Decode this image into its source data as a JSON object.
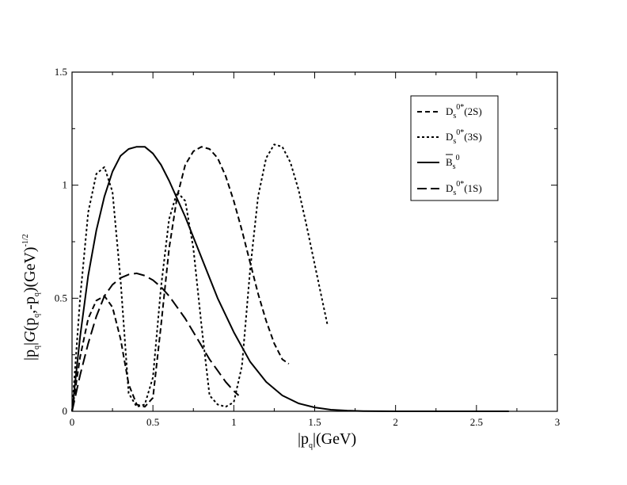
{
  "chart_data": {
    "type": "line",
    "xlabel": "|p_q|(GeV)",
    "ylabel": "|p_q|G(p_q,-p_q)(GeV)^-1/2",
    "xlim": [
      0,
      3
    ],
    "ylim": [
      0,
      1.5
    ],
    "xticks": [
      0,
      0.5,
      1,
      1.5,
      2,
      2.5,
      3
    ],
    "xtick_labels": [
      "0",
      "0.5",
      "1",
      "1.5",
      "2",
      "2.5",
      "3"
    ],
    "yticks": [
      0,
      0.5,
      1,
      1.5
    ],
    "ytick_labels": [
      "0",
      "0.5",
      "1",
      "1.5"
    ],
    "grid": false,
    "legend_position": "top-right",
    "series": [
      {
        "name": "D_s^0*(2S)",
        "style": "dash",
        "color": "#000000",
        "x": [
          0,
          0.05,
          0.1,
          0.15,
          0.2,
          0.25,
          0.3,
          0.35,
          0.4,
          0.45,
          0.5,
          0.55,
          0.6,
          0.65,
          0.7,
          0.75,
          0.8,
          0.85,
          0.9,
          0.95,
          1.0,
          1.05,
          1.1,
          1.15,
          1.2,
          1.25,
          1.3,
          1.34
        ],
        "y": [
          0,
          0.24,
          0.41,
          0.49,
          0.51,
          0.46,
          0.32,
          0.12,
          0.03,
          0.02,
          0.06,
          0.38,
          0.72,
          0.95,
          1.09,
          1.15,
          1.17,
          1.16,
          1.12,
          1.04,
          0.93,
          0.8,
          0.66,
          0.52,
          0.4,
          0.3,
          0.23,
          0.21
        ]
      },
      {
        "name": "D_s^0*(3S)",
        "style": "dot",
        "color": "#000000",
        "x": [
          0,
          0.05,
          0.1,
          0.15,
          0.2,
          0.25,
          0.3,
          0.35,
          0.4,
          0.45,
          0.5,
          0.55,
          0.6,
          0.65,
          0.7,
          0.75,
          0.8,
          0.85,
          0.9,
          0.95,
          1.0,
          1.05,
          1.1,
          1.15,
          1.2,
          1.25,
          1.3,
          1.35,
          1.4,
          1.45,
          1.5,
          1.55,
          1.58
        ],
        "y": [
          0,
          0.5,
          0.88,
          1.05,
          1.08,
          0.97,
          0.58,
          0.08,
          0.02,
          0.03,
          0.15,
          0.55,
          0.85,
          0.97,
          0.93,
          0.72,
          0.38,
          0.07,
          0.03,
          0.02,
          0.04,
          0.2,
          0.62,
          0.95,
          1.12,
          1.18,
          1.17,
          1.1,
          0.98,
          0.82,
          0.65,
          0.48,
          0.38
        ]
      },
      {
        "name": "B̄_s^0",
        "style": "solid",
        "color": "#000000",
        "x": [
          0,
          0.05,
          0.1,
          0.15,
          0.2,
          0.25,
          0.3,
          0.35,
          0.4,
          0.45,
          0.5,
          0.55,
          0.6,
          0.7,
          0.8,
          0.9,
          1.0,
          1.1,
          1.2,
          1.3,
          1.4,
          1.5,
          1.6,
          1.7,
          1.8,
          2.0,
          2.2,
          2.4,
          2.6,
          2.7
        ],
        "y": [
          0,
          0.33,
          0.6,
          0.8,
          0.95,
          1.06,
          1.13,
          1.16,
          1.17,
          1.17,
          1.14,
          1.09,
          1.02,
          0.86,
          0.68,
          0.5,
          0.35,
          0.22,
          0.13,
          0.07,
          0.035,
          0.017,
          0.007,
          0.003,
          0.001,
          0,
          0,
          0,
          0,
          0
        ]
      },
      {
        "name": "D_s^0*(1S)",
        "style": "longdash",
        "color": "#000000",
        "x": [
          0,
          0.05,
          0.1,
          0.15,
          0.2,
          0.25,
          0.3,
          0.35,
          0.4,
          0.45,
          0.5,
          0.55,
          0.6,
          0.65,
          0.7,
          0.75,
          0.8,
          0.85,
          0.9,
          0.95,
          1.0,
          1.03
        ],
        "y": [
          0,
          0.16,
          0.3,
          0.42,
          0.51,
          0.56,
          0.59,
          0.605,
          0.61,
          0.6,
          0.58,
          0.55,
          0.51,
          0.46,
          0.41,
          0.35,
          0.29,
          0.23,
          0.18,
          0.13,
          0.09,
          0.07
        ]
      }
    ]
  }
}
